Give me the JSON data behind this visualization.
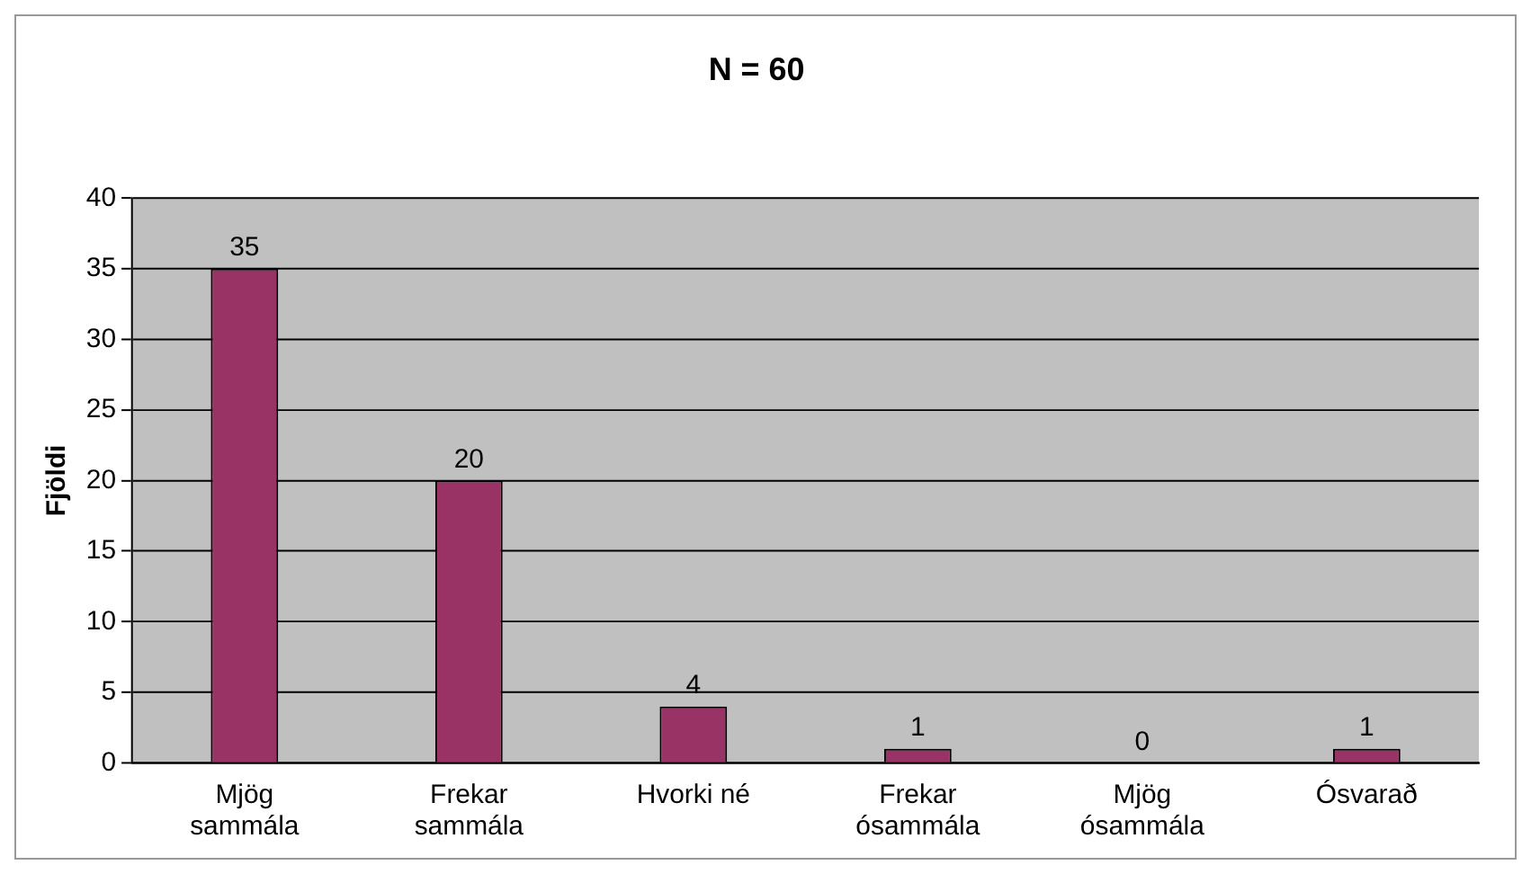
{
  "chart_data": {
    "type": "bar",
    "title": "N = 60",
    "ylabel": "Fjöldi",
    "categories": [
      "Mjög sammála",
      "Frekar sammála",
      "Hvorki né",
      "Frekar ósammála",
      "Mjög ósammála",
      "Ósvarað"
    ],
    "values": [
      35,
      20,
      4,
      1,
      0,
      1
    ],
    "color": "#993366",
    "ylim": [
      0,
      40
    ],
    "yticks": [
      0,
      5,
      10,
      15,
      20,
      25,
      30,
      35,
      40
    ],
    "grid": "y",
    "data_labels": true,
    "legend": false
  }
}
